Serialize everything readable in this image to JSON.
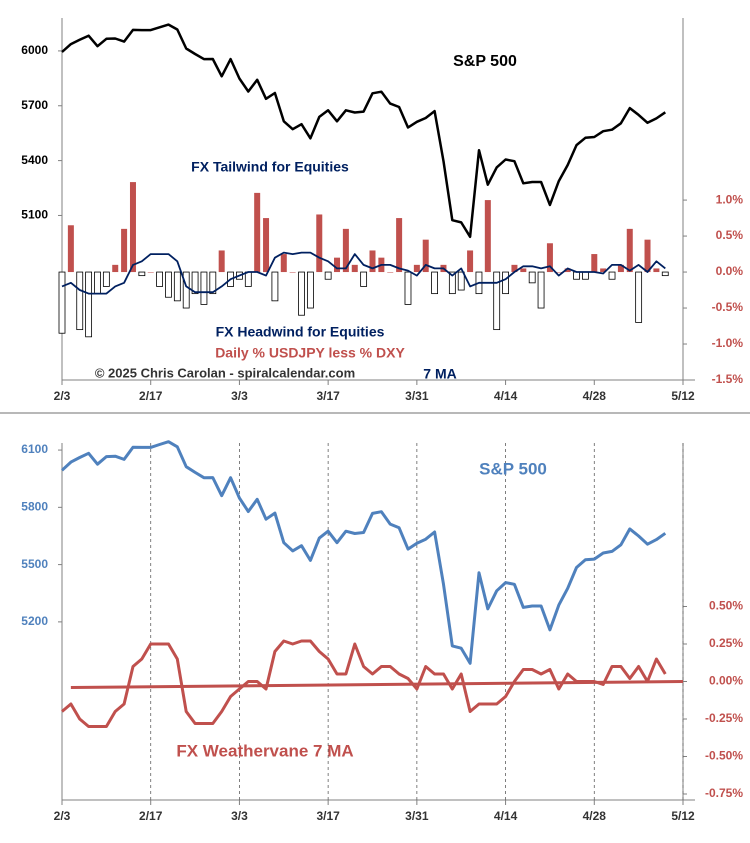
{
  "chart_data": [
    {
      "type": "combo",
      "categories": [
        "2/3",
        null,
        null,
        null,
        null,
        null,
        null,
        null,
        null,
        null,
        "2/17",
        null,
        null,
        null,
        null,
        null,
        null,
        null,
        null,
        null,
        "3/3",
        null,
        null,
        null,
        null,
        null,
        null,
        null,
        null,
        null,
        "3/17",
        null,
        null,
        null,
        null,
        null,
        null,
        null,
        null,
        null,
        "3/31",
        null,
        null,
        null,
        null,
        null,
        null,
        null,
        null,
        null,
        "4/14",
        null,
        null,
        null,
        null,
        null,
        null,
        null,
        null,
        null,
        "4/28",
        null,
        null,
        null,
        null,
        null,
        null,
        null,
        null,
        null,
        "5/12"
      ],
      "ylim": [
        4200,
        6180
      ],
      "yticks": [
        5100,
        5400,
        5700,
        6000
      ],
      "y2lim": [
        -1.5,
        3.53
      ],
      "y2ticks": [
        {
          "value": -1.5,
          "label": "-1.5%"
        },
        {
          "value": -1,
          "label": "-1.0%"
        },
        {
          "value": -0.5,
          "label": "-0.5%"
        },
        {
          "value": 0,
          "label": "0.0%"
        },
        {
          "value": 0.5,
          "label": "0.5%"
        },
        {
          "value": 1,
          "label": "1.0%"
        }
      ],
      "series": [
        {
          "name": "S&P 500",
          "type": "line",
          "color": "#000000",
          "values": [
            5994,
            6037,
            6061,
            6083,
            6026,
            6066,
            6068,
            6051,
            6115,
            6114,
            6114,
            6129,
            6144,
            6117,
            6013,
            5983,
            5955,
            5956,
            5861,
            5955,
            5849,
            5778,
            5842,
            5738,
            5770,
            5615,
            5572,
            5599,
            5522,
            5639,
            5675,
            5615,
            5675,
            5663,
            5668,
            5768,
            5777,
            5712,
            5693,
            5581,
            5612,
            5633,
            5671,
            5397,
            5074,
            5062,
            4983,
            5457,
            5268,
            5363,
            5406,
            5397,
            5276,
            5283,
            5283,
            5158,
            5288,
            5376,
            5485,
            5525,
            5529,
            5561,
            5569,
            5604,
            5687,
            5650,
            5607,
            5631,
            5664,
            null,
            null
          ]
        },
        {
          "name": "Daily % USDJPY less % DXY",
          "type": "bar",
          "color": "#c0504d",
          "negative_color": "#ffffff",
          "axis": "y2",
          "values": [
            -0.85,
            0.65,
            -0.8,
            -0.9,
            -0.3,
            -0.2,
            0.1,
            0.6,
            1.25,
            -0.05,
            0,
            -0.2,
            -0.35,
            -0.4,
            -0.5,
            -0.3,
            -0.45,
            -0.3,
            0.3,
            -0.2,
            -0.1,
            -0.2,
            1.1,
            0.75,
            -0.4,
            0.25,
            0,
            -0.6,
            -0.5,
            0.8,
            -0.1,
            0.2,
            0.6,
            0.1,
            -0.2,
            0.3,
            0.2,
            0,
            0.75,
            -0.45,
            0.1,
            0.45,
            -0.3,
            0.1,
            -0.3,
            -0.25,
            0.3,
            -0.3,
            1.0,
            -0.8,
            -0.3,
            0.1,
            0.05,
            -0.15,
            -0.5,
            0.4,
            0,
            0.05,
            -0.1,
            -0.1,
            0.25,
            0.05,
            -0.1,
            0.1,
            0.6,
            -0.7,
            0.45,
            0.05,
            -0.05,
            null,
            null
          ]
        },
        {
          "name": "7 MA",
          "type": "line",
          "color": "#002060",
          "axis": "y2",
          "values": [
            -0.2,
            -0.15,
            -0.25,
            -0.3,
            -0.3,
            -0.3,
            -0.2,
            -0.15,
            0.1,
            0.15,
            0.25,
            0.25,
            0.25,
            0.15,
            -0.2,
            -0.28,
            -0.28,
            -0.28,
            -0.2,
            -0.1,
            -0.05,
            0,
            0,
            -0.05,
            0.2,
            0.27,
            0.25,
            0.27,
            0.27,
            0.2,
            0.15,
            0.05,
            0.05,
            0.25,
            0.1,
            0.05,
            0.1,
            0.1,
            0.05,
            0.02,
            -0.05,
            0.1,
            0.05,
            0.05,
            -0.05,
            0.05,
            -0.2,
            -0.15,
            -0.15,
            -0.15,
            -0.1,
            0,
            0.08,
            0.08,
            0.05,
            0.08,
            -0.05,
            0.05,
            0,
            0,
            0,
            -0.02,
            0.1,
            0.1,
            0.02,
            0.1,
            0,
            0.15,
            0.05,
            null,
            null
          ]
        }
      ],
      "annotations": [
        "FX Tailwind for Equities",
        "FX Headwind for Equities",
        "© 2025 Chris Carolan - spiralcalendar.com"
      ]
    },
    {
      "type": "combo",
      "categories": [
        "2/3",
        null,
        null,
        null,
        null,
        null,
        null,
        null,
        null,
        null,
        "2/17",
        null,
        null,
        null,
        null,
        null,
        null,
        null,
        null,
        null,
        "3/3",
        null,
        null,
        null,
        null,
        null,
        null,
        null,
        null,
        null,
        "3/17",
        null,
        null,
        null,
        null,
        null,
        null,
        null,
        null,
        null,
        "3/31",
        null,
        null,
        null,
        null,
        null,
        null,
        null,
        null,
        null,
        "4/14",
        null,
        null,
        null,
        null,
        null,
        null,
        null,
        null,
        null,
        "4/28",
        null,
        null,
        null,
        null,
        null,
        null,
        null,
        null,
        null,
        "5/12"
      ],
      "ylim": [
        4267,
        6137
      ],
      "yticks": [
        5200,
        5500,
        5800,
        6100
      ],
      "y2lim": [
        -0.79,
        1.59
      ],
      "y2ticks": [
        {
          "value": -0.75,
          "label": "-0.75%"
        },
        {
          "value": -0.5,
          "label": "-0.50%"
        },
        {
          "value": -0.25,
          "label": "-0.25%"
        },
        {
          "value": 0,
          "label": "0.00%"
        },
        {
          "value": 0.25,
          "label": "0.25%"
        },
        {
          "value": 0.5,
          "label": "0.50%"
        }
      ],
      "grid": "x",
      "series": [
        {
          "name": "S&P 500",
          "type": "line",
          "color": "#4f81bd",
          "values": [
            5994,
            6037,
            6061,
            6083,
            6026,
            6066,
            6068,
            6051,
            6115,
            6114,
            6114,
            6129,
            6144,
            6117,
            6013,
            5983,
            5955,
            5956,
            5861,
            5955,
            5849,
            5778,
            5842,
            5738,
            5770,
            5615,
            5572,
            5599,
            5522,
            5639,
            5675,
            5615,
            5675,
            5663,
            5668,
            5768,
            5777,
            5712,
            5693,
            5581,
            5612,
            5633,
            5671,
            5397,
            5074,
            5062,
            4983,
            5457,
            5268,
            5363,
            5406,
            5397,
            5276,
            5283,
            5283,
            5158,
            5288,
            5376,
            5485,
            5525,
            5529,
            5561,
            5569,
            5604,
            5687,
            5650,
            5607,
            5631,
            5664,
            null,
            null
          ]
        },
        {
          "name": "FX Weathervane 7 MA",
          "type": "line",
          "color": "#c0504d",
          "axis": "y2",
          "values": [
            -0.2,
            -0.15,
            -0.25,
            -0.3,
            -0.3,
            -0.3,
            -0.2,
            -0.15,
            0.1,
            0.15,
            0.25,
            0.25,
            0.25,
            0.15,
            -0.2,
            -0.28,
            -0.28,
            -0.28,
            -0.2,
            -0.1,
            -0.05,
            0,
            0,
            -0.05,
            0.2,
            0.27,
            0.25,
            0.27,
            0.27,
            0.2,
            0.15,
            0.05,
            0.05,
            0.25,
            0.1,
            0.05,
            0.1,
            0.1,
            0.05,
            0.02,
            -0.05,
            0.1,
            0.05,
            0.05,
            -0.05,
            0.05,
            -0.2,
            -0.15,
            -0.15,
            -0.15,
            -0.1,
            0,
            0.08,
            0.08,
            0.05,
            0.08,
            -0.05,
            0.05,
            0,
            0,
            0,
            -0.02,
            0.1,
            0.1,
            0.02,
            0.1,
            0,
            0.15,
            0.05,
            null,
            null
          ]
        }
      ],
      "trendline": {
        "color": "#c0504d",
        "values": [
          -0.04,
          0
        ]
      }
    }
  ]
}
